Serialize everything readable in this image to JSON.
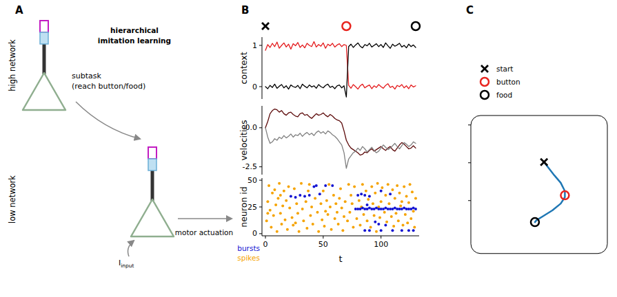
{
  "panel_labels": [
    "A",
    "B",
    "C"
  ],
  "diagram": {
    "title_lines": [
      "hierarchical",
      "imitation learning"
    ],
    "high_network": "high network",
    "low_network": "low network",
    "subtask_lines": [
      "subtask",
      "(reach button/food)"
    ],
    "input": {
      "symbol": "I",
      "subscript": "input"
    },
    "output": "motor actuation"
  },
  "chart_data": [
    {
      "type": "line",
      "y_label": "context",
      "xlim": [
        -3,
        133
      ],
      "ylim": [
        -0.3,
        1.2
      ],
      "yticks": [
        0,
        1
      ],
      "tick_labels": "y",
      "event_times": [
        0,
        70,
        130
      ],
      "x": [
        0,
        2,
        4,
        6,
        8,
        10,
        12,
        14,
        16,
        18,
        20,
        22,
        24,
        26,
        28,
        30,
        32,
        34,
        36,
        38,
        40,
        42,
        44,
        46,
        48,
        50,
        52,
        54,
        56,
        58,
        60,
        62,
        64,
        66,
        68,
        70,
        72,
        74,
        76,
        78,
        80,
        82,
        84,
        86,
        88,
        90,
        92,
        94,
        96,
        98,
        100,
        102,
        104,
        106,
        108,
        110,
        112,
        114,
        116,
        118,
        120,
        122,
        124,
        126,
        128,
        130
      ],
      "series": [
        {
          "color": "#e41a1c",
          "values": [
            0.88,
            1.02,
            0.95,
            1.05,
            0.97,
            1.08,
            0.93,
            1.0,
            1.06,
            0.96,
            1.03,
            0.91,
            1.04,
            0.99,
            1.07,
            0.95,
            1.01,
            0.94,
            1.05,
            1.0,
            0.97,
            1.09,
            0.96,
            1.02,
            0.98,
            1.06,
            0.93,
            1.03,
            0.99,
            1.05,
            0.96,
            1.01,
            1.04,
            0.97,
            1.02,
            1.0,
            0.03,
            -0.04,
            0.05,
            0.0,
            -0.06,
            0.02,
            0.06,
            -0.03,
            0.01,
            0.04,
            -0.05,
            0.02,
            -0.02,
            0.05,
            0.0,
            -0.04,
            0.03,
            0.07,
            -0.02,
            0.01,
            -0.06,
            0.03,
            0.0,
            0.05,
            -0.03,
            0.02,
            -0.05,
            0.04,
            -0.01,
            0.02
          ]
        },
        {
          "color": "#000000",
          "values": [
            0.0,
            -0.05,
            0.03,
            -0.02,
            0.06,
            -0.04,
            0.01,
            0.05,
            -0.03,
            0.02,
            -0.06,
            0.04,
            0.0,
            -0.02,
            0.03,
            -0.05,
            0.06,
            0.01,
            -0.03,
            0.04,
            -0.01,
            0.02,
            -0.04,
            0.05,
            0.0,
            -0.03,
            0.03,
            0.06,
            -0.02,
            0.01,
            -0.05,
            0.02,
            0.04,
            -0.03,
            0.02,
            -0.25,
            0.97,
            1.03,
            0.95,
            1.01,
            1.06,
            0.98,
            0.94,
            1.02,
            0.99,
            1.05,
            0.96,
            1.0,
            1.04,
            0.97,
            1.02,
            0.95,
            1.06,
            0.99,
            0.93,
            1.03,
            0.98,
            1.01,
            1.05,
            0.96,
            1.0,
            0.94,
            1.03,
            0.97,
            1.01,
            0.95
          ]
        }
      ]
    },
    {
      "type": "line",
      "y_label": "velocities",
      "xlim": [
        -3,
        133
      ],
      "ylim": [
        -3,
        1.4
      ],
      "yticks": [
        {
          "value": 0,
          "label": "0.0"
        },
        -2.5
      ],
      "tick_labels": "y",
      "x": [
        0,
        2,
        4,
        6,
        8,
        10,
        12,
        14,
        16,
        18,
        20,
        22,
        24,
        26,
        28,
        30,
        32,
        34,
        36,
        38,
        40,
        42,
        44,
        46,
        48,
        50,
        52,
        54,
        56,
        58,
        60,
        62,
        64,
        66,
        68,
        70,
        72,
        74,
        76,
        78,
        80,
        82,
        84,
        86,
        88,
        90,
        92,
        94,
        96,
        98,
        100,
        102,
        104,
        106,
        108,
        110,
        112,
        114,
        116,
        118,
        120,
        122,
        124,
        126,
        128,
        130
      ],
      "series": [
        {
          "color": "#5c0a0a",
          "values": [
            0.0,
            0.4,
            0.9,
            1.1,
            1.2,
            1.15,
            1.0,
            1.1,
            0.9,
            0.8,
            0.95,
            1.0,
            0.85,
            0.75,
            0.7,
            0.9,
            0.95,
            0.8,
            0.85,
            0.7,
            0.6,
            0.75,
            0.9,
            0.8,
            0.85,
            0.95,
            0.8,
            0.7,
            0.85,
            0.75,
            0.6,
            0.5,
            0.45,
            0.3,
            -0.2,
            -0.8,
            -1.1,
            -1.3,
            -1.4,
            -1.5,
            -1.6,
            -1.75,
            -1.7,
            -1.55,
            -1.6,
            -1.45,
            -1.35,
            -1.5,
            -1.4,
            -1.3,
            -1.2,
            -1.35,
            -1.45,
            -1.3,
            -1.2,
            -1.4,
            -1.5,
            -1.3,
            -1.1,
            -0.95,
            -1.05,
            -1.2,
            -1.35,
            -1.3,
            -1.15,
            -1.3
          ]
        },
        {
          "color": "#808080",
          "values": [
            0.0,
            -0.6,
            -1.0,
            -0.9,
            -0.7,
            -0.8,
            -0.6,
            -0.7,
            -0.5,
            -0.65,
            -0.55,
            -0.4,
            -0.6,
            -0.45,
            -0.5,
            -0.35,
            -0.55,
            -0.4,
            -0.3,
            -0.45,
            -0.35,
            -0.5,
            -0.3,
            -0.2,
            -0.35,
            -0.25,
            -0.4,
            -0.2,
            -0.3,
            -0.45,
            -0.55,
            -0.7,
            -0.9,
            -1.1,
            -1.6,
            -2.6,
            -2.0,
            -1.8,
            -1.6,
            -1.5,
            -1.3,
            -1.45,
            -1.2,
            -1.35,
            -1.55,
            -1.4,
            -1.25,
            -1.45,
            -1.6,
            -1.5,
            -1.3,
            -1.1,
            -1.25,
            -1.4,
            -1.3,
            -1.15,
            -1.0,
            -1.2,
            -1.35,
            -1.15,
            -0.95,
            -1.05,
            -1.2,
            -1.1,
            -0.9,
            -1.0
          ]
        }
      ]
    },
    {
      "type": "scatter",
      "x_label": "t",
      "y_label": "neuron id",
      "xlim": [
        -3,
        133
      ],
      "ylim": [
        -2,
        52
      ],
      "xticks": [
        0,
        50,
        100
      ],
      "yticks": [
        0,
        25,
        50
      ],
      "legend": "lower left",
      "series": [
        {
          "name": "bursts",
          "color": "#1414d2",
          "marker": "dot",
          "x": [
            22,
            26,
            30,
            34,
            38,
            42,
            44,
            47,
            52,
            58,
            80,
            83,
            86,
            90,
            78,
            80,
            82,
            84,
            86,
            88,
            90,
            92,
            94,
            96,
            98,
            100,
            102,
            104,
            106,
            108,
            110,
            112,
            114,
            116,
            118,
            120,
            122,
            124,
            126,
            128,
            130,
            86,
            90,
            95,
            98,
            100,
            104,
            110,
            118,
            124,
            128,
            88,
            108,
            100
          ],
          "values": [
            35,
            34,
            36,
            35,
            36,
            44,
            45,
            37,
            45,
            45,
            36,
            37,
            36,
            35,
            23,
            23,
            23,
            24,
            23,
            23,
            24,
            23,
            23,
            24,
            23,
            23,
            23,
            24,
            23,
            23,
            23,
            24,
            23,
            23,
            23,
            24,
            23,
            23,
            23,
            24,
            23,
            3,
            3,
            11,
            9,
            3,
            8,
            3,
            3,
            3,
            3,
            27,
            37,
            40
          ]
        },
        {
          "name": "spikes",
          "color": "#f5a300",
          "marker": "dot",
          "x": [
            1,
            2,
            3,
            4,
            5,
            6,
            7,
            8,
            9,
            10,
            11,
            12,
            13,
            14,
            15,
            16,
            17,
            18,
            19,
            20,
            21,
            23,
            24,
            25,
            27,
            28,
            29,
            31,
            32,
            33,
            35,
            36,
            37,
            39,
            40,
            41,
            43,
            45,
            46,
            48,
            49,
            50,
            51,
            53,
            54,
            55,
            56,
            57,
            59,
            60,
            61,
            62,
            63,
            64,
            66,
            67,
            68,
            69,
            71,
            72,
            73,
            75,
            76,
            77,
            79,
            81,
            82,
            84,
            85,
            87,
            88,
            89,
            91,
            92,
            93,
            94,
            95,
            96,
            97,
            99,
            100,
            101,
            103,
            104,
            105,
            106,
            107,
            109,
            110,
            111,
            112,
            113,
            114,
            115,
            116,
            117,
            119,
            120,
            121,
            122,
            123,
            124,
            125,
            126,
            127,
            128,
            129,
            130,
            2,
            13,
            26,
            38,
            52,
            65,
            74,
            83,
            98,
            118
          ],
          "values": [
            12,
            30,
            45,
            22,
            6,
            38,
            17,
            41,
            27,
            2,
            33,
            47,
            19,
            9,
            26,
            40,
            13,
            31,
            4,
            44,
            24,
            15,
            8,
            42,
            28,
            19,
            2,
            47,
            23,
            12,
            30,
            5,
            40,
            17,
            25,
            9,
            33,
            20,
            2,
            28,
            13,
            40,
            7,
            31,
            18,
            46,
            25,
            4,
            36,
            14,
            28,
            20,
            9,
            33,
            24,
            3,
            16,
            30,
            12,
            46,
            20,
            28,
            6,
            44,
            14,
            31,
            8,
            46,
            18,
            40,
            12,
            32,
            6,
            44,
            28,
            17,
            38,
            2,
            47,
            15,
            30,
            43,
            20,
            36,
            11,
            46,
            28,
            16,
            41,
            7,
            33,
            19,
            45,
            12,
            38,
            26,
            8,
            44,
            18,
            35,
            10,
            29,
            46,
            14,
            39,
            21,
            6,
            33,
            19,
            36,
            10,
            46,
            21,
            42,
            36,
            25,
            25,
            30
          ]
        }
      ]
    },
    {
      "type": "line",
      "xlim": [
        -1.8,
        1.8
      ],
      "ylim": [
        -2.4,
        1.25
      ],
      "yticks": [
        -1,
        0,
        1
      ],
      "tick_labels": false,
      "legend": "upper left",
      "series": [
        {
          "color": "#1f77b4",
          "x": [
            0.13,
            0.26,
            0.4,
            0.57,
            0.68,
            0.68,
            0.57,
            0.35,
            0.11,
            -0.07,
            -0.11
          ],
          "values": [
            0.02,
            -0.15,
            -0.33,
            -0.53,
            -0.75,
            -0.91,
            -1.08,
            -1.26,
            -1.41,
            -1.52,
            -1.57
          ]
        },
        {
          "name": "start",
          "type": "scatter",
          "marker": "x",
          "color": "#000000",
          "x": [
            0.13
          ],
          "values": [
            0.02
          ]
        },
        {
          "name": "button",
          "type": "scatter",
          "marker": "circle",
          "color": "#e8251f",
          "x": [
            0.68
          ],
          "values": [
            -0.86
          ]
        },
        {
          "name": "food",
          "type": "scatter",
          "marker": "circle",
          "color": "#000000",
          "x": [
            -0.11
          ],
          "values": [
            -1.57
          ]
        }
      ]
    }
  ]
}
